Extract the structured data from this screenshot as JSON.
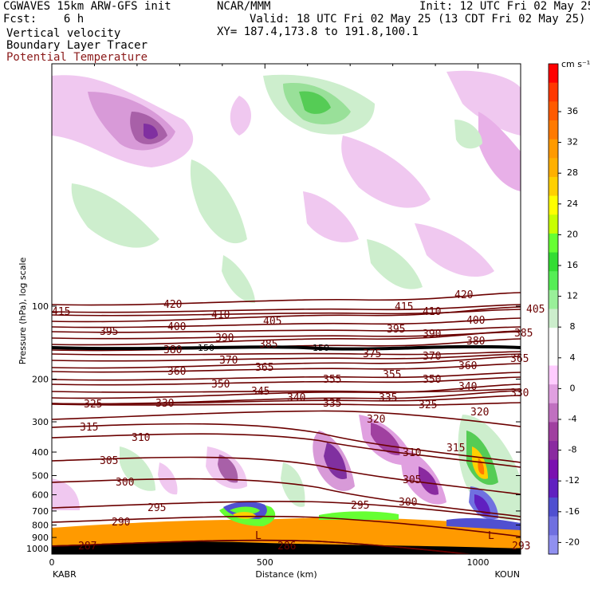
{
  "header": {
    "left1": "CGWAVES 15km ARW-GFS init",
    "left2": "Fcst:    6 h",
    "center1": "NCAR/MMM",
    "center2": "XY= 187.4,173.8 to 191.8,100.1",
    "right1": "Init: 12 UTC Fri 02 May 25",
    "right2": "Valid: 18 UTC Fri 02 May 25 (13 CDT Fri 02 May 25)",
    "field1": "Vertical velocity",
    "field2": "Boundary Layer Tracer",
    "field3": "Potential Temperature",
    "field3_color": "#8b1a1a"
  },
  "chart_data": {
    "type": "heatmap",
    "subtype": "vertical cross-section",
    "xlabel": "Distance (km)",
    "ylabel": "Pressure (hPa), log scale",
    "x_ticks": [
      0,
      500,
      1000
    ],
    "x_range": [
      0,
      1100
    ],
    "y_ticks": [
      100,
      200,
      300,
      400,
      500,
      600,
      700,
      800,
      900,
      1000
    ],
    "y_scale": "log",
    "left_endpoint": "KABR",
    "right_endpoint": "KOUN",
    "colorbar": {
      "units": "cm s⁻¹",
      "ticks": [
        36,
        32,
        28,
        24,
        20,
        16,
        12,
        8,
        4,
        0,
        -4,
        -8,
        -12,
        -16,
        -20
      ],
      "colors": [
        "#ff0000",
        "#ff3800",
        "#ff5a00",
        "#ff7a00",
        "#ff9a00",
        "#ffb000",
        "#ffd000",
        "#ffff00",
        "#c8ff00",
        "#66ff33",
        "#33dd33",
        "#55ee55",
        "#99f099",
        "#cceecc",
        "#ffffff",
        "#ffffff",
        "#ffccff",
        "#e0a0e0",
        "#c070c0",
        "#a040a0",
        "#8a2aa0",
        "#7a10b0",
        "#6020c0",
        "#5050d0",
        "#7070e0",
        "#9090f0"
      ]
    },
    "theta_contours": [
      {
        "value": 415,
        "label_positions": [
          [
            40,
            395
          ],
          [
            470,
            389
          ]
        ]
      },
      {
        "value": 420,
        "label_positions": [
          [
            180,
            386
          ],
          [
            545,
            374
          ]
        ]
      },
      {
        "value": 410,
        "label_positions": [
          [
            240,
            399
          ],
          [
            505,
            395
          ]
        ]
      },
      {
        "value": 405,
        "label_positions": [
          [
            305,
            407
          ],
          [
            635,
            392
          ]
        ]
      },
      {
        "value": 400,
        "label_positions": [
          [
            185,
            414
          ],
          [
            560,
            406
          ]
        ]
      },
      {
        "value": 395,
        "label_positions": [
          [
            100,
            420
          ],
          [
            460,
            417
          ]
        ]
      },
      {
        "value": 390,
        "label_positions": [
          [
            245,
            428
          ],
          [
            505,
            423
          ]
        ]
      },
      {
        "value": 385,
        "label_positions": [
          [
            300,
            436
          ],
          [
            620,
            422
          ]
        ]
      },
      {
        "value": 380,
        "label_positions": [
          [
            180,
            443
          ],
          [
            560,
            432
          ]
        ]
      },
      {
        "value": 375,
        "label_positions": [
          [
            430,
            448
          ]
        ]
      },
      {
        "value": 370,
        "label_positions": [
          [
            250,
            456
          ],
          [
            505,
            451
          ]
        ]
      },
      {
        "value": 365,
        "label_positions": [
          [
            295,
            465
          ],
          [
            615,
            454
          ]
        ]
      },
      {
        "value": 360,
        "label_positions": [
          [
            185,
            470
          ],
          [
            550,
            463
          ]
        ]
      },
      {
        "value": 355,
        "label_positions": [
          [
            380,
            480
          ],
          [
            455,
            474
          ]
        ]
      },
      {
        "value": 350,
        "label_positions": [
          [
            240,
            486
          ],
          [
            505,
            480
          ]
        ]
      },
      {
        "value": 345,
        "label_positions": [
          [
            290,
            495
          ]
        ]
      },
      {
        "value": 340,
        "label_positions": [
          [
            335,
            503
          ],
          [
            550,
            489
          ]
        ]
      },
      {
        "value": 335,
        "label_positions": [
          [
            380,
            510
          ],
          [
            450,
            503
          ]
        ]
      },
      {
        "value": 330,
        "label_positions": [
          [
            170,
            510
          ],
          [
            615,
            497
          ]
        ]
      },
      {
        "value": 325,
        "label_positions": [
          [
            80,
            511
          ],
          [
            500,
            512
          ]
        ]
      },
      {
        "value": 320,
        "label_positions": [
          [
            435,
            530
          ],
          [
            565,
            521
          ]
        ]
      },
      {
        "value": 315,
        "label_positions": [
          [
            75,
            540
          ],
          [
            535,
            566
          ]
        ]
      },
      {
        "value": 310,
        "label_positions": [
          [
            140,
            553
          ],
          [
            480,
            572
          ]
        ]
      },
      {
        "value": 305,
        "label_positions": [
          [
            100,
            582
          ],
          [
            480,
            606
          ]
        ]
      },
      {
        "value": 300,
        "label_positions": [
          [
            120,
            609
          ],
          [
            475,
            634
          ]
        ]
      },
      {
        "value": 295,
        "label_positions": [
          [
            160,
            641
          ],
          [
            415,
            638
          ]
        ]
      },
      {
        "value": 290,
        "label_positions": [
          [
            115,
            659
          ]
        ]
      },
      {
        "value": 287,
        "label_positions": [
          [
            73,
            689
          ]
        ]
      },
      {
        "value": 286,
        "label_positions": [
          [
            323,
            689
          ]
        ]
      },
      {
        "value": 293,
        "label_positions": [
          [
            617,
            689
          ]
        ]
      }
    ],
    "tropopause_label": "150",
    "low_markers": [
      "L",
      "L"
    ]
  }
}
